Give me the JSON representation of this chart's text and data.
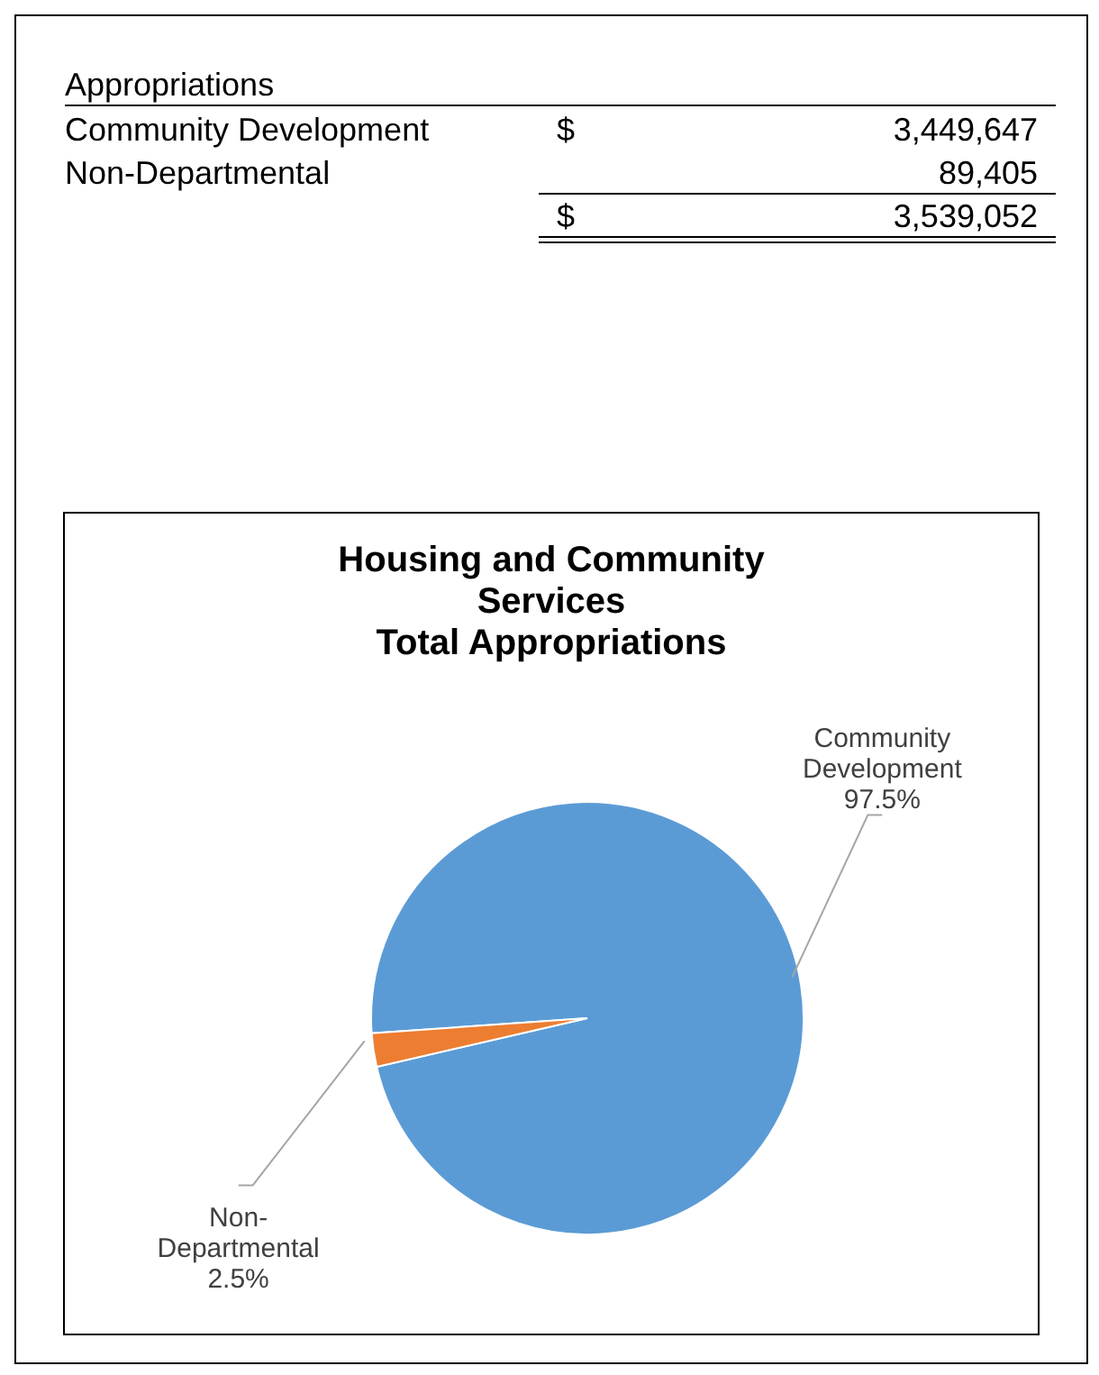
{
  "chart_data": [
    {
      "type": "other",
      "title": "Appropriations",
      "annotations": [
        "Community Development",
        "$",
        "3,449,647",
        "Non-Departmental",
        "89,405",
        "$",
        "3,539,052"
      ]
    },
    {
      "type": "pie",
      "title": "Housing and Community Services",
      "subtitle": "Total Appropriations",
      "categories": [
        "Community Development",
        "Non-Departmental"
      ],
      "values": [
        97.5,
        2.5
      ],
      "colors": [
        "#5b9bd5",
        "#ed7d31"
      ],
      "value_labels": [
        "97.5%",
        "2.5%"
      ],
      "legend": false
    }
  ]
}
